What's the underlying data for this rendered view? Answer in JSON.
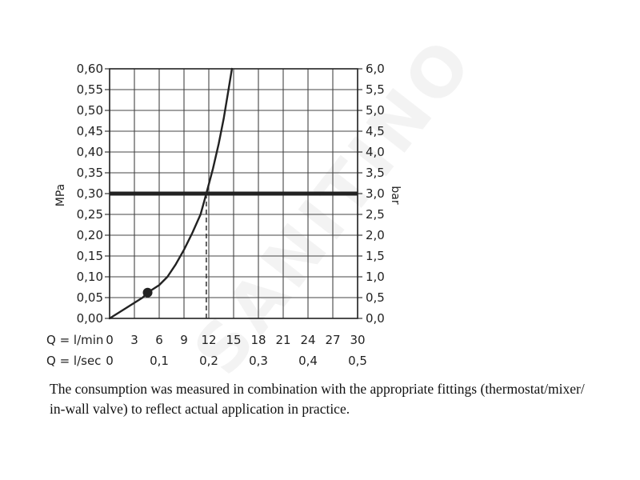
{
  "chart_data": {
    "type": "line",
    "y_left": {
      "label": "MPa",
      "ylim": [
        0,
        0.6
      ],
      "tick_labels": [
        "0,00",
        "0,05",
        "0,10",
        "0,15",
        "0,20",
        "0,25",
        "0,30",
        "0,35",
        "0,40",
        "0,45",
        "0,50",
        "0,55",
        "0,60"
      ]
    },
    "y_right": {
      "label": "bar",
      "ylim": [
        0,
        6
      ],
      "tick_labels": [
        "0,0",
        "0,5",
        "1,0",
        "1,5",
        "2,0",
        "2,5",
        "3,0",
        "3,5",
        "4,0",
        "4,5",
        "5,0",
        "5,5",
        "6,0"
      ]
    },
    "x_lmin": {
      "label": "Q = l/min",
      "xlim": [
        0,
        30
      ],
      "tick_values": [
        0,
        3,
        6,
        9,
        12,
        15,
        18,
        21,
        24,
        27,
        30
      ],
      "tick_labels": [
        "0",
        "3",
        "6",
        "9",
        "12",
        "15",
        "18",
        "21",
        "24",
        "27",
        "30"
      ]
    },
    "x_lsec": {
      "label": "Q = l/sec",
      "tick_values": [
        0,
        0.1,
        0.2,
        0.3,
        0.4,
        0.5
      ],
      "tick_labels": [
        "0",
        "0,1",
        "0,2",
        "0,3",
        "0,4",
        "0,5"
      ]
    },
    "series": [
      {
        "x": [
          0,
          2,
          4,
          4.6,
          6,
          7,
          8,
          9,
          10,
          11,
          11.7,
          12.5,
          13.2,
          13.8,
          14.3,
          14.8
        ],
        "y": [
          0,
          0.025,
          0.05,
          0.062,
          0.08,
          0.1,
          0.13,
          0.165,
          0.205,
          0.25,
          0.3,
          0.36,
          0.42,
          0.48,
          0.54,
          0.6
        ]
      }
    ],
    "marker": {
      "x": 4.6,
      "y": 0.062
    },
    "reference_line": {
      "y": 0.3
    },
    "dashed_drop": {
      "x": 11.7,
      "y": 0.3
    },
    "grid": true
  },
  "watermark": "SANITINO",
  "footnote": {
    "line1": "The consumption was measured in combination with the appropriate fittings (thermostat/mixer/",
    "line2": "in-wall valve) to reflect actual application in practice."
  }
}
